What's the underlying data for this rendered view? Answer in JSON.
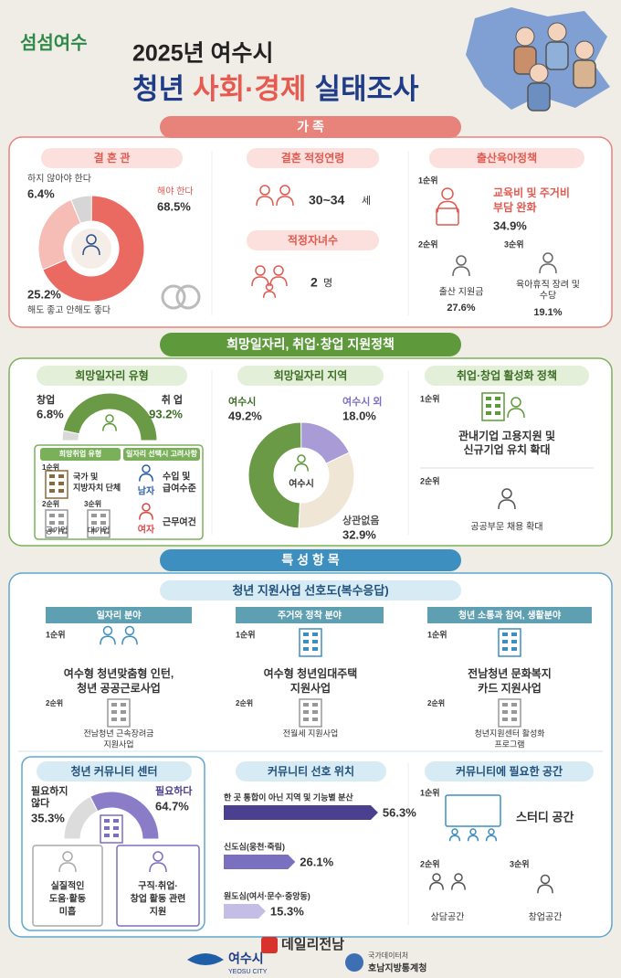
{
  "header": {
    "logo": "섬섬여수",
    "subtitle": "2025년 여수시",
    "title": [
      "청년",
      "사회·경제",
      "실태조사"
    ]
  },
  "family": {
    "title": "가 족",
    "marriage_view": {
      "title": "결 혼 관",
      "items": [
        {
          "label": [
            "해야 한다"
          ],
          "value": 68.5,
          "value_label": "68.5%",
          "color": "#ea6a62"
        },
        {
          "label": [
            "해도 좋고 안해도 좋다"
          ],
          "value": 25.2,
          "value_label": "25.2%",
          "color": "#f6bcb6"
        },
        {
          "label": [
            "하지 않아야 한다"
          ],
          "value": 6.4,
          "value_label": "6.4%",
          "color": "#d6d6d6"
        }
      ]
    },
    "marriage_age": {
      "title": "결혼 적정연령",
      "value": "30~34",
      "unit": "세"
    },
    "children": {
      "title": "적정자녀수",
      "value": "2",
      "unit": "명"
    },
    "birth_policy": {
      "title": "출산육아정책",
      "ranks": [
        {
          "rank": "1순위",
          "label": [
            "교육비 및 주거비",
            "부담 완화"
          ],
          "rate": "34.9%"
        },
        {
          "rank": "2순위",
          "label": [
            "출산 지원금"
          ],
          "rate": "27.6%"
        },
        {
          "rank": "3순위",
          "label": [
            "육아휴직 장려 및",
            "수당"
          ],
          "rate": "19.1%"
        }
      ]
    }
  },
  "jobs": {
    "title": "희망일자리, 취업·창업 지원정책",
    "job_type": {
      "title": "희망일자리 유형",
      "items": [
        {
          "label": "창업",
          "value": 6.8,
          "value_label": "6.8%",
          "color": "#d9d9d9"
        },
        {
          "label": "취 업",
          "value": 93.2,
          "value_label": "93.2%",
          "color": "#6a9a45"
        }
      ],
      "preferred": {
        "title": "희망취업 유형",
        "ranks": [
          {
            "rank": "1순위",
            "label": [
              "국가 및",
              "지방자치 단체"
            ]
          },
          {
            "rank": "2순위",
            "label": [
              "공기업"
            ]
          },
          {
            "rank": "3순위",
            "label": [
              "대기업"
            ]
          }
        ]
      },
      "factors": {
        "title": "일자리 선택시 고려사항",
        "items": [
          {
            "group": "남자",
            "label": [
              "수입 및",
              "급여수준"
            ]
          },
          {
            "group": "여자",
            "label": [
              "근무여건"
            ]
          }
        ]
      }
    },
    "job_region": {
      "title": "희망일자리 지역",
      "center_label": "여수시",
      "items": [
        {
          "label": "여수시",
          "value": 49.2,
          "value_label": "49.2%",
          "color": "#6a9a45"
        },
        {
          "label": "상관없음",
          "value": 32.9,
          "value_label": "32.9%",
          "color": "#efe6d6"
        },
        {
          "label": "여수시 외",
          "value": 18.0,
          "value_label": "18.0%",
          "color": "#a99bd6"
        }
      ]
    },
    "policy": {
      "title": "취업·창업 활성화 정책",
      "ranks": [
        {
          "rank": "1순위",
          "label": [
            "관내기업 고용지원 및",
            "신규기업 유치 확대"
          ]
        },
        {
          "rank": "2순위",
          "label": [
            "공공부문 채용 확대"
          ]
        }
      ]
    }
  },
  "special": {
    "title": "특 성 항 목",
    "preference": {
      "title": "청년 지원사업 선호도(복수응답)",
      "fields": [
        {
          "title": "일자리 분야",
          "ranks": [
            {
              "rank": "1순위",
              "label": [
                "여수형 청년맞춤형 인턴,",
                "청년 공공근로사업"
              ]
            },
            {
              "rank": "2순위",
              "label": [
                "전남청년 근속장려금",
                "지원사업"
              ]
            }
          ]
        },
        {
          "title": "주거와 정착 분야",
          "ranks": [
            {
              "rank": "1순위",
              "label": [
                "여수형 청년임대주택",
                "지원사업"
              ]
            },
            {
              "rank": "2순위",
              "label": [
                "전월세 지원사업"
              ]
            }
          ]
        },
        {
          "title": "청년 소통과 참여, 생활분야",
          "ranks": [
            {
              "rank": "1순위",
              "label": [
                "전남청년 문화복지",
                "카드 지원사업"
              ]
            },
            {
              "rank": "2순위",
              "label": [
                "청년지원센터 활성화",
                "프로그램"
              ]
            }
          ]
        }
      ]
    },
    "center": {
      "title": "청년 커뮤니티 센터",
      "items": [
        {
          "label": [
            "필요하지",
            "않다"
          ],
          "value": 35.3,
          "value_label": "35.3%",
          "color": "#dcdcdc",
          "reason": [
            "실질적인",
            "도움·활동",
            "미흡"
          ]
        },
        {
          "label": [
            "필요하다"
          ],
          "value": 64.7,
          "value_label": "64.7%",
          "color": "#8b7cc8",
          "reason": [
            "구직·취업·",
            "창업 활동 관련",
            "지원"
          ]
        }
      ]
    },
    "location": {
      "title": "커뮤니티 선호 위치",
      "items": [
        {
          "label": "한 곳 통합이 아닌 지역 및 기능별 분산",
          "value": 56.3,
          "value_label": "56.3%",
          "color": "#4b3f8f"
        },
        {
          "label": "신도심(웅천·죽림)",
          "value": 26.1,
          "value_label": "26.1%",
          "color": "#7b6fc0"
        },
        {
          "label": "원도심(여서·문수·중앙동)",
          "value": 15.3,
          "value_label": "15.3%",
          "color": "#c4bde6"
        }
      ]
    },
    "space": {
      "title": "커뮤니티에 필요한 공간",
      "ranks": [
        {
          "rank": "1순위",
          "label": [
            "스터디 공간"
          ]
        },
        {
          "rank": "2순위",
          "label": [
            "상담공간"
          ]
        },
        {
          "rank": "3순위",
          "label": [
            "창업공간"
          ]
        }
      ]
    }
  },
  "footer": {
    "city": "여수시",
    "city_en": "YEOSU CITY",
    "agency": "국가데이터처",
    "office": "호남지방통계청",
    "watermark": "데일리전남"
  }
}
